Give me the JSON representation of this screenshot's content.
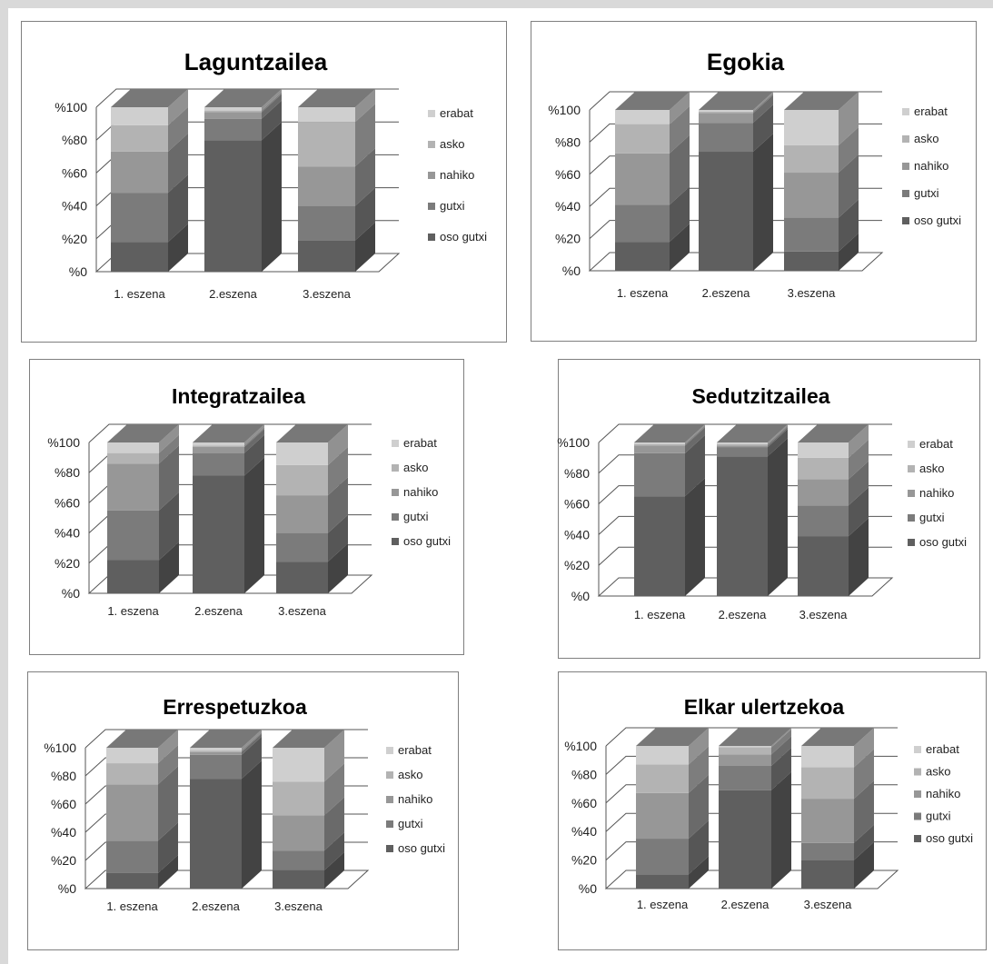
{
  "chart_data": [
    {
      "type": "bar",
      "stacked": true,
      "title": "Laguntzailea",
      "categories": [
        "1. eszena",
        "2.eszena",
        "3.eszena"
      ],
      "yticks": [
        "%0",
        "%20",
        "%40",
        "%60",
        "%80",
        "%100"
      ],
      "ylim": [
        0,
        100
      ],
      "legend_position": "right",
      "series": [
        {
          "name": "oso gutxi",
          "values": [
            18,
            80,
            19
          ]
        },
        {
          "name": "gutxi",
          "values": [
            30,
            13,
            21
          ]
        },
        {
          "name": "nahiko",
          "values": [
            25,
            4,
            24
          ]
        },
        {
          "name": "asko",
          "values": [
            16,
            1,
            27
          ]
        },
        {
          "name": "erabat",
          "values": [
            11,
            2,
            9
          ]
        }
      ]
    },
    {
      "type": "bar",
      "stacked": true,
      "title": "Egokia",
      "categories": [
        "1. eszena",
        "2.eszena",
        "3.eszena"
      ],
      "yticks": [
        "%0",
        "%20",
        "%40",
        "%60",
        "%80",
        "%100"
      ],
      "ylim": [
        0,
        100
      ],
      "legend_position": "right",
      "series": [
        {
          "name": "oso gutxi",
          "values": [
            18,
            74,
            12
          ]
        },
        {
          "name": "gutxi",
          "values": [
            23,
            18,
            21
          ]
        },
        {
          "name": "nahiko",
          "values": [
            32,
            6,
            28
          ]
        },
        {
          "name": "asko",
          "values": [
            18,
            1,
            17
          ]
        },
        {
          "name": "erabat",
          "values": [
            9,
            1,
            22
          ]
        }
      ]
    },
    {
      "type": "bar",
      "stacked": true,
      "title": "Integratzailea",
      "categories": [
        "1. eszena",
        "2.eszena",
        "3.eszena"
      ],
      "yticks": [
        "%0",
        "%20",
        "%40",
        "%60",
        "%80",
        "%100"
      ],
      "ylim": [
        0,
        100
      ],
      "legend_position": "right",
      "series": [
        {
          "name": "oso gutxi",
          "values": [
            22,
            78,
            21
          ]
        },
        {
          "name": "gutxi",
          "values": [
            33,
            15,
            19
          ]
        },
        {
          "name": "nahiko",
          "values": [
            31,
            4,
            25
          ]
        },
        {
          "name": "asko",
          "values": [
            7,
            1,
            20
          ]
        },
        {
          "name": "erabat",
          "values": [
            7,
            2,
            15
          ]
        }
      ]
    },
    {
      "type": "bar",
      "stacked": true,
      "title": "Sedutzitzailea",
      "categories": [
        "1. eszena",
        "2.eszena",
        "3.eszena"
      ],
      "yticks": [
        "%0",
        "%20",
        "%40",
        "%60",
        "%80",
        "%100"
      ],
      "ylim": [
        0,
        100
      ],
      "legend_position": "right",
      "series": [
        {
          "name": "oso gutxi",
          "values": [
            65,
            91,
            39
          ]
        },
        {
          "name": "gutxi",
          "values": [
            28,
            6,
            20
          ]
        },
        {
          "name": "nahiko",
          "values": [
            5,
            1,
            17
          ]
        },
        {
          "name": "asko",
          "values": [
            1,
            1,
            14
          ]
        },
        {
          "name": "erabat",
          "values": [
            1,
            1,
            10
          ]
        }
      ]
    },
    {
      "type": "bar",
      "stacked": true,
      "title": "Errespetuzkoa",
      "categories": [
        "1. eszena",
        "2.eszena",
        "3.eszena"
      ],
      "yticks": [
        "%0",
        "%20",
        "%40",
        "%60",
        "%80",
        "%100"
      ],
      "ylim": [
        0,
        100
      ],
      "legend_position": "right",
      "series": [
        {
          "name": "oso gutxi",
          "values": [
            11,
            78,
            13
          ]
        },
        {
          "name": "gutxi",
          "values": [
            23,
            17,
            14
          ]
        },
        {
          "name": "nahiko",
          "values": [
            40,
            2,
            25
          ]
        },
        {
          "name": "asko",
          "values": [
            15,
            1,
            24
          ]
        },
        {
          "name": "erabat",
          "values": [
            11,
            2,
            24
          ]
        }
      ]
    },
    {
      "type": "bar",
      "stacked": true,
      "title": "Elkar ulertzekoa",
      "categories": [
        "1. eszena",
        "2.eszena",
        "3.eszena"
      ],
      "yticks": [
        "%0",
        "%20",
        "%40",
        "%60",
        "%80",
        "%100"
      ],
      "ylim": [
        0,
        100
      ],
      "legend_position": "right",
      "series": [
        {
          "name": "oso gutxi",
          "values": [
            10,
            69,
            20
          ]
        },
        {
          "name": "gutxi",
          "values": [
            25,
            17,
            12
          ]
        },
        {
          "name": "nahiko",
          "values": [
            32,
            8,
            31
          ]
        },
        {
          "name": "asko",
          "values": [
            20,
            5,
            22
          ]
        },
        {
          "name": "erabat",
          "values": [
            13,
            1,
            15
          ]
        }
      ]
    }
  ],
  "colors": {
    "oso gutxi": "#5f5f5f",
    "gutxi": "#7b7b7b",
    "nahiko": "#979797",
    "asko": "#b3b3b3",
    "erabat": "#cfcfcf",
    "wall": "#ffffff",
    "gridline": "#555555"
  }
}
